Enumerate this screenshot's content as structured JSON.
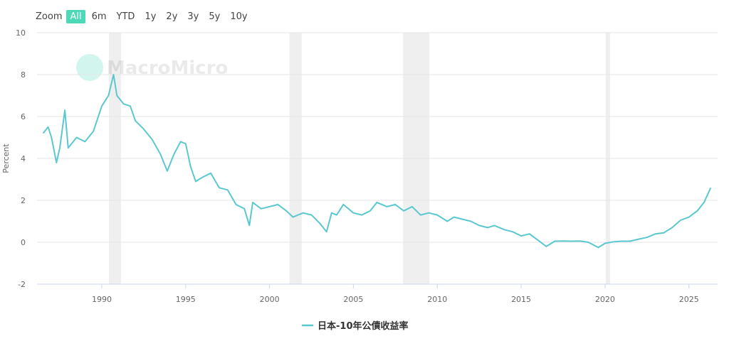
{
  "zoom": {
    "label": "Zoom",
    "buttons": [
      "All",
      "6m",
      "YTD",
      "1y",
      "2y",
      "3y",
      "5y",
      "10y"
    ],
    "active": "All"
  },
  "watermark": "MacroMicro",
  "chart_data": {
    "type": "line",
    "y_label": "Percent",
    "xlim": [
      1986.14,
      2026.71
    ],
    "xticks": [
      1990,
      1995,
      2000,
      2005,
      2010,
      2015,
      2020,
      2025
    ],
    "ylim": [
      -2,
      10
    ],
    "yticks": [
      -2,
      0,
      2,
      4,
      6,
      8,
      10
    ],
    "grid": true,
    "legend": "bottom",
    "shaded_ranges": [
      [
        1990.43,
        1991.15
      ],
      [
        2001.19,
        2001.92
      ],
      [
        2007.96,
        2009.53
      ],
      [
        2020.04,
        2020.3
      ]
    ],
    "x": [
      1986.5,
      1986.8,
      1987.0,
      1987.3,
      1987.5,
      1987.8,
      1988.0,
      1988.5,
      1989.0,
      1989.5,
      1990.0,
      1990.4,
      1990.7,
      1990.9,
      1991.3,
      1991.7,
      1992.0,
      1992.5,
      1993.0,
      1993.5,
      1993.9,
      1994.3,
      1994.7,
      1995.0,
      1995.3,
      1995.6,
      1996.0,
      1996.5,
      1997.0,
      1997.5,
      1998.0,
      1998.5,
      1998.8,
      1999.0,
      1999.5,
      2000.0,
      2000.5,
      2001.0,
      2001.4,
      2002.0,
      2002.5,
      2003.0,
      2003.4,
      2003.7,
      2004.0,
      2004.4,
      2005.0,
      2005.5,
      2006.0,
      2006.4,
      2007.0,
      2007.5,
      2008.0,
      2008.5,
      2009.0,
      2009.5,
      2010.0,
      2010.6,
      2011.0,
      2011.5,
      2012.0,
      2012.5,
      2013.0,
      2013.4,
      2014.0,
      2014.5,
      2015.0,
      2015.5,
      2016.0,
      2016.5,
      2017.0,
      2017.5,
      2018.0,
      2018.5,
      2019.0,
      2019.6,
      2020.0,
      2020.5,
      2021.0,
      2021.5,
      2022.0,
      2022.5,
      2023.0,
      2023.5,
      2024.0,
      2024.5,
      2025.0,
      2025.5,
      2025.9,
      2026.3
    ],
    "series": [
      {
        "name": "日本-10年公債收益率",
        "color": "#5bc8d0",
        "values": [
          5.2,
          5.5,
          5.0,
          3.8,
          4.5,
          6.3,
          4.5,
          5.0,
          4.8,
          5.3,
          6.5,
          7.0,
          8.0,
          7.0,
          6.6,
          6.5,
          5.8,
          5.4,
          4.9,
          4.2,
          3.4,
          4.2,
          4.8,
          4.7,
          3.6,
          2.9,
          3.1,
          3.3,
          2.6,
          2.5,
          1.8,
          1.6,
          0.8,
          1.9,
          1.6,
          1.7,
          1.8,
          1.5,
          1.2,
          1.4,
          1.3,
          0.9,
          0.5,
          1.4,
          1.3,
          1.8,
          1.4,
          1.3,
          1.5,
          1.9,
          1.7,
          1.8,
          1.5,
          1.7,
          1.3,
          1.4,
          1.3,
          1.0,
          1.2,
          1.1,
          1.0,
          0.8,
          0.7,
          0.8,
          0.6,
          0.5,
          0.3,
          0.4,
          0.1,
          -0.2,
          0.05,
          0.06,
          0.05,
          0.06,
          0.0,
          -0.25,
          -0.05,
          0.02,
          0.05,
          0.05,
          0.15,
          0.23,
          0.4,
          0.45,
          0.7,
          1.05,
          1.2,
          1.5,
          1.9,
          2.6
        ]
      }
    ]
  }
}
